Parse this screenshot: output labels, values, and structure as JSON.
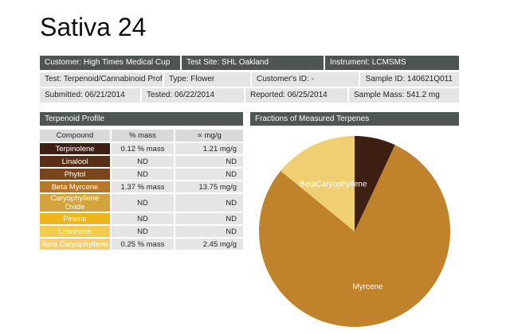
{
  "title": "Sativa 24",
  "info": {
    "customer": "Customer: High Times Medical Cup",
    "test_site": "Test Site: SHL Oakland",
    "instrument": "Instrument: LCMSMS",
    "test": "Test: Terpenoid/Cannabinoid Profile",
    "type": "Type: Flower",
    "customer_id": "Customer's ID: -",
    "sample_id": "Sample ID: 140621Q011",
    "submitted": "Submitted: 06/21/2014",
    "tested": "Tested: 06/22/2014",
    "reported": "Reported: 06/25/2014",
    "sample_mass": "Sample Mass: 541.2 mg"
  },
  "profile": {
    "heading": "Terpenoid Profile",
    "columns": [
      "Compound",
      "% mass",
      "∝ mg/g"
    ],
    "rows": [
      {
        "compound": "Terpinolene",
        "mass": "0.12 % mass",
        "mg": "1.21 mg/g",
        "color": "#3e1f14"
      },
      {
        "compound": "Linalool",
        "mass": "ND",
        "mg": "ND",
        "color": "#5a2e14"
      },
      {
        "compound": "Phytol",
        "mass": "ND",
        "mg": "ND",
        "color": "#7b4419"
      },
      {
        "compound": "Beta Myrcene",
        "mass": "1.37 % mass",
        "mg": "13.75 mg/g",
        "color": "#b87628"
      },
      {
        "compound": "Caryophyllene Oxide",
        "mass": "ND",
        "mg": "ND",
        "color": "#d4a33c"
      },
      {
        "compound": "Pinene",
        "mass": "ND",
        "mg": "ND",
        "color": "#f0b518"
      },
      {
        "compound": "Limonene",
        "mass": "ND",
        "mg": "ND",
        "color": "#f3ca52"
      },
      {
        "compound": "Beta Caryophyllene",
        "mass": "0.25 % mass",
        "mg": "2.45 mg/g",
        "color": "#f2cf72"
      }
    ]
  },
  "fractions_heading": "Fractions of Measured Terpenes",
  "chart_data": {
    "type": "pie",
    "title": "Fractions of Measured Terpenes",
    "slices": [
      {
        "label": "",
        "value": 1.21,
        "color": "#3e1f14"
      },
      {
        "label": "Myrcene",
        "value": 13.75,
        "color": "#c0832c"
      },
      {
        "label": "BetaCaryophyllene",
        "value": 2.45,
        "color": "#efcf72"
      }
    ]
  }
}
